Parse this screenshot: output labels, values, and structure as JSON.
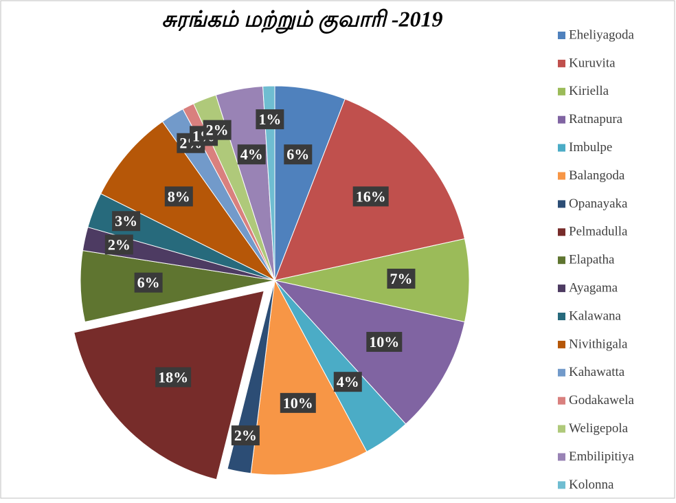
{
  "chart_data": {
    "type": "pie",
    "title": "சுரங்கம் மற்றும் குவாரி -2019",
    "categories": [
      "Eheliyagoda",
      "Kuruvita",
      "Kiriella",
      "Ratnapura",
      "Imbulpe",
      "Balangoda",
      "Opanayaka",
      "Pelmadulla",
      "Elapatha",
      "Ayagama",
      "Kalawana",
      "Nivithigala",
      "Kahawatta",
      "Godakawela",
      "Weligepola",
      "Embilipitiya",
      "Kolonna"
    ],
    "values": [
      6,
      16,
      7,
      10,
      4,
      10,
      2,
      18,
      6,
      2,
      3,
      8,
      2,
      1,
      2,
      4,
      1
    ],
    "value_labels": [
      "6%",
      "16%",
      "7%",
      "10%",
      "4%",
      "10%",
      "2%",
      "18%",
      "6%",
      "2%",
      "3%",
      "8%",
      "2%",
      "1%",
      "2%",
      "4%",
      "1%"
    ],
    "colors": [
      "#4f81bd",
      "#c0504d",
      "#9bbb59",
      "#8064a2",
      "#4bacc6",
      "#f79646",
      "#2c4d75",
      "#772c2a",
      "#5f7530",
      "#4d3b62",
      "#276a7c",
      "#b65708",
      "#729aca",
      "#d9807e",
      "#afc97a",
      "#9983b5",
      "#6fbdd1"
    ],
    "exploded": [
      false,
      false,
      false,
      false,
      false,
      false,
      false,
      true,
      false,
      false,
      false,
      false,
      false,
      false,
      false,
      false,
      false
    ],
    "legend": "right"
  }
}
